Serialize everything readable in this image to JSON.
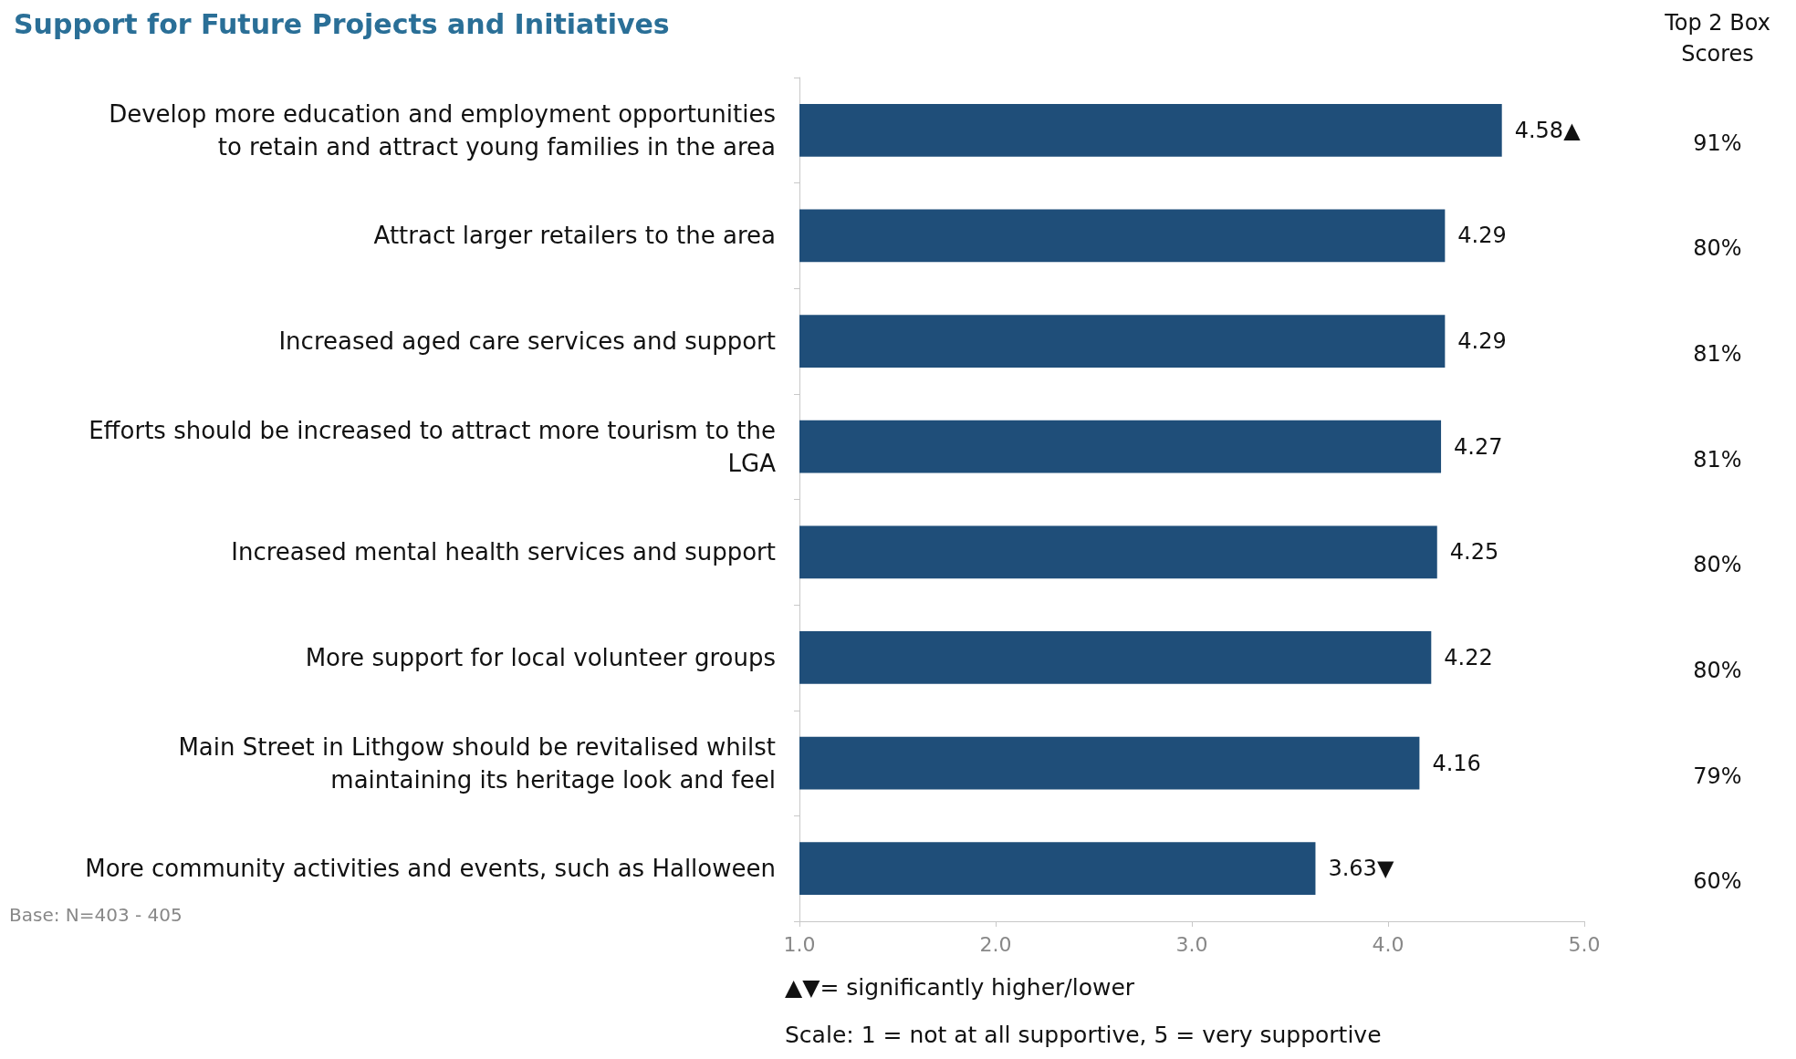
{
  "chart_data": {
    "type": "bar",
    "orientation": "horizontal",
    "title": "Support for Future Projects and Initiatives",
    "categories": [
      "Develop more education and employment opportunities\nto retain and attract young families in the area",
      "Attract larger retailers to the area",
      "Increased aged care services and support",
      "Efforts should be increased to attract more tourism to the\nLGA",
      "Increased mental health services and support",
      "More support for local volunteer groups",
      "Main Street in Lithgow should be revitalised whilst\nmaintaining its heritage look and feel",
      "More community activities and events, such as Halloween"
    ],
    "values": [
      4.58,
      4.29,
      4.29,
      4.27,
      4.25,
      4.22,
      4.16,
      3.63
    ],
    "value_labels": [
      "4.58▲",
      "4.29",
      "4.29",
      "4.27",
      "4.25",
      "4.22",
      "4.16",
      "3.63▼"
    ],
    "color": "#1f4e79",
    "xlim": [
      1,
      5
    ],
    "xticks": [
      {
        "value": 1,
        "label": "1.0"
      },
      {
        "value": 2,
        "label": "2.0"
      },
      {
        "value": 3,
        "label": "3.0"
      },
      {
        "value": 4,
        "label": "4.0"
      },
      {
        "value": 5,
        "label": "5.0"
      }
    ],
    "grid": false,
    "annotations": [
      "Top 2 Box\nScores",
      "91%",
      "80%",
      "81%",
      "81%",
      "80%",
      "80%",
      "79%",
      "60%",
      "Base: N=403 - 405",
      "▲▼= significantly higher/lower",
      "Scale: 1 = not at all supportive, 5 = very supportive"
    ]
  }
}
